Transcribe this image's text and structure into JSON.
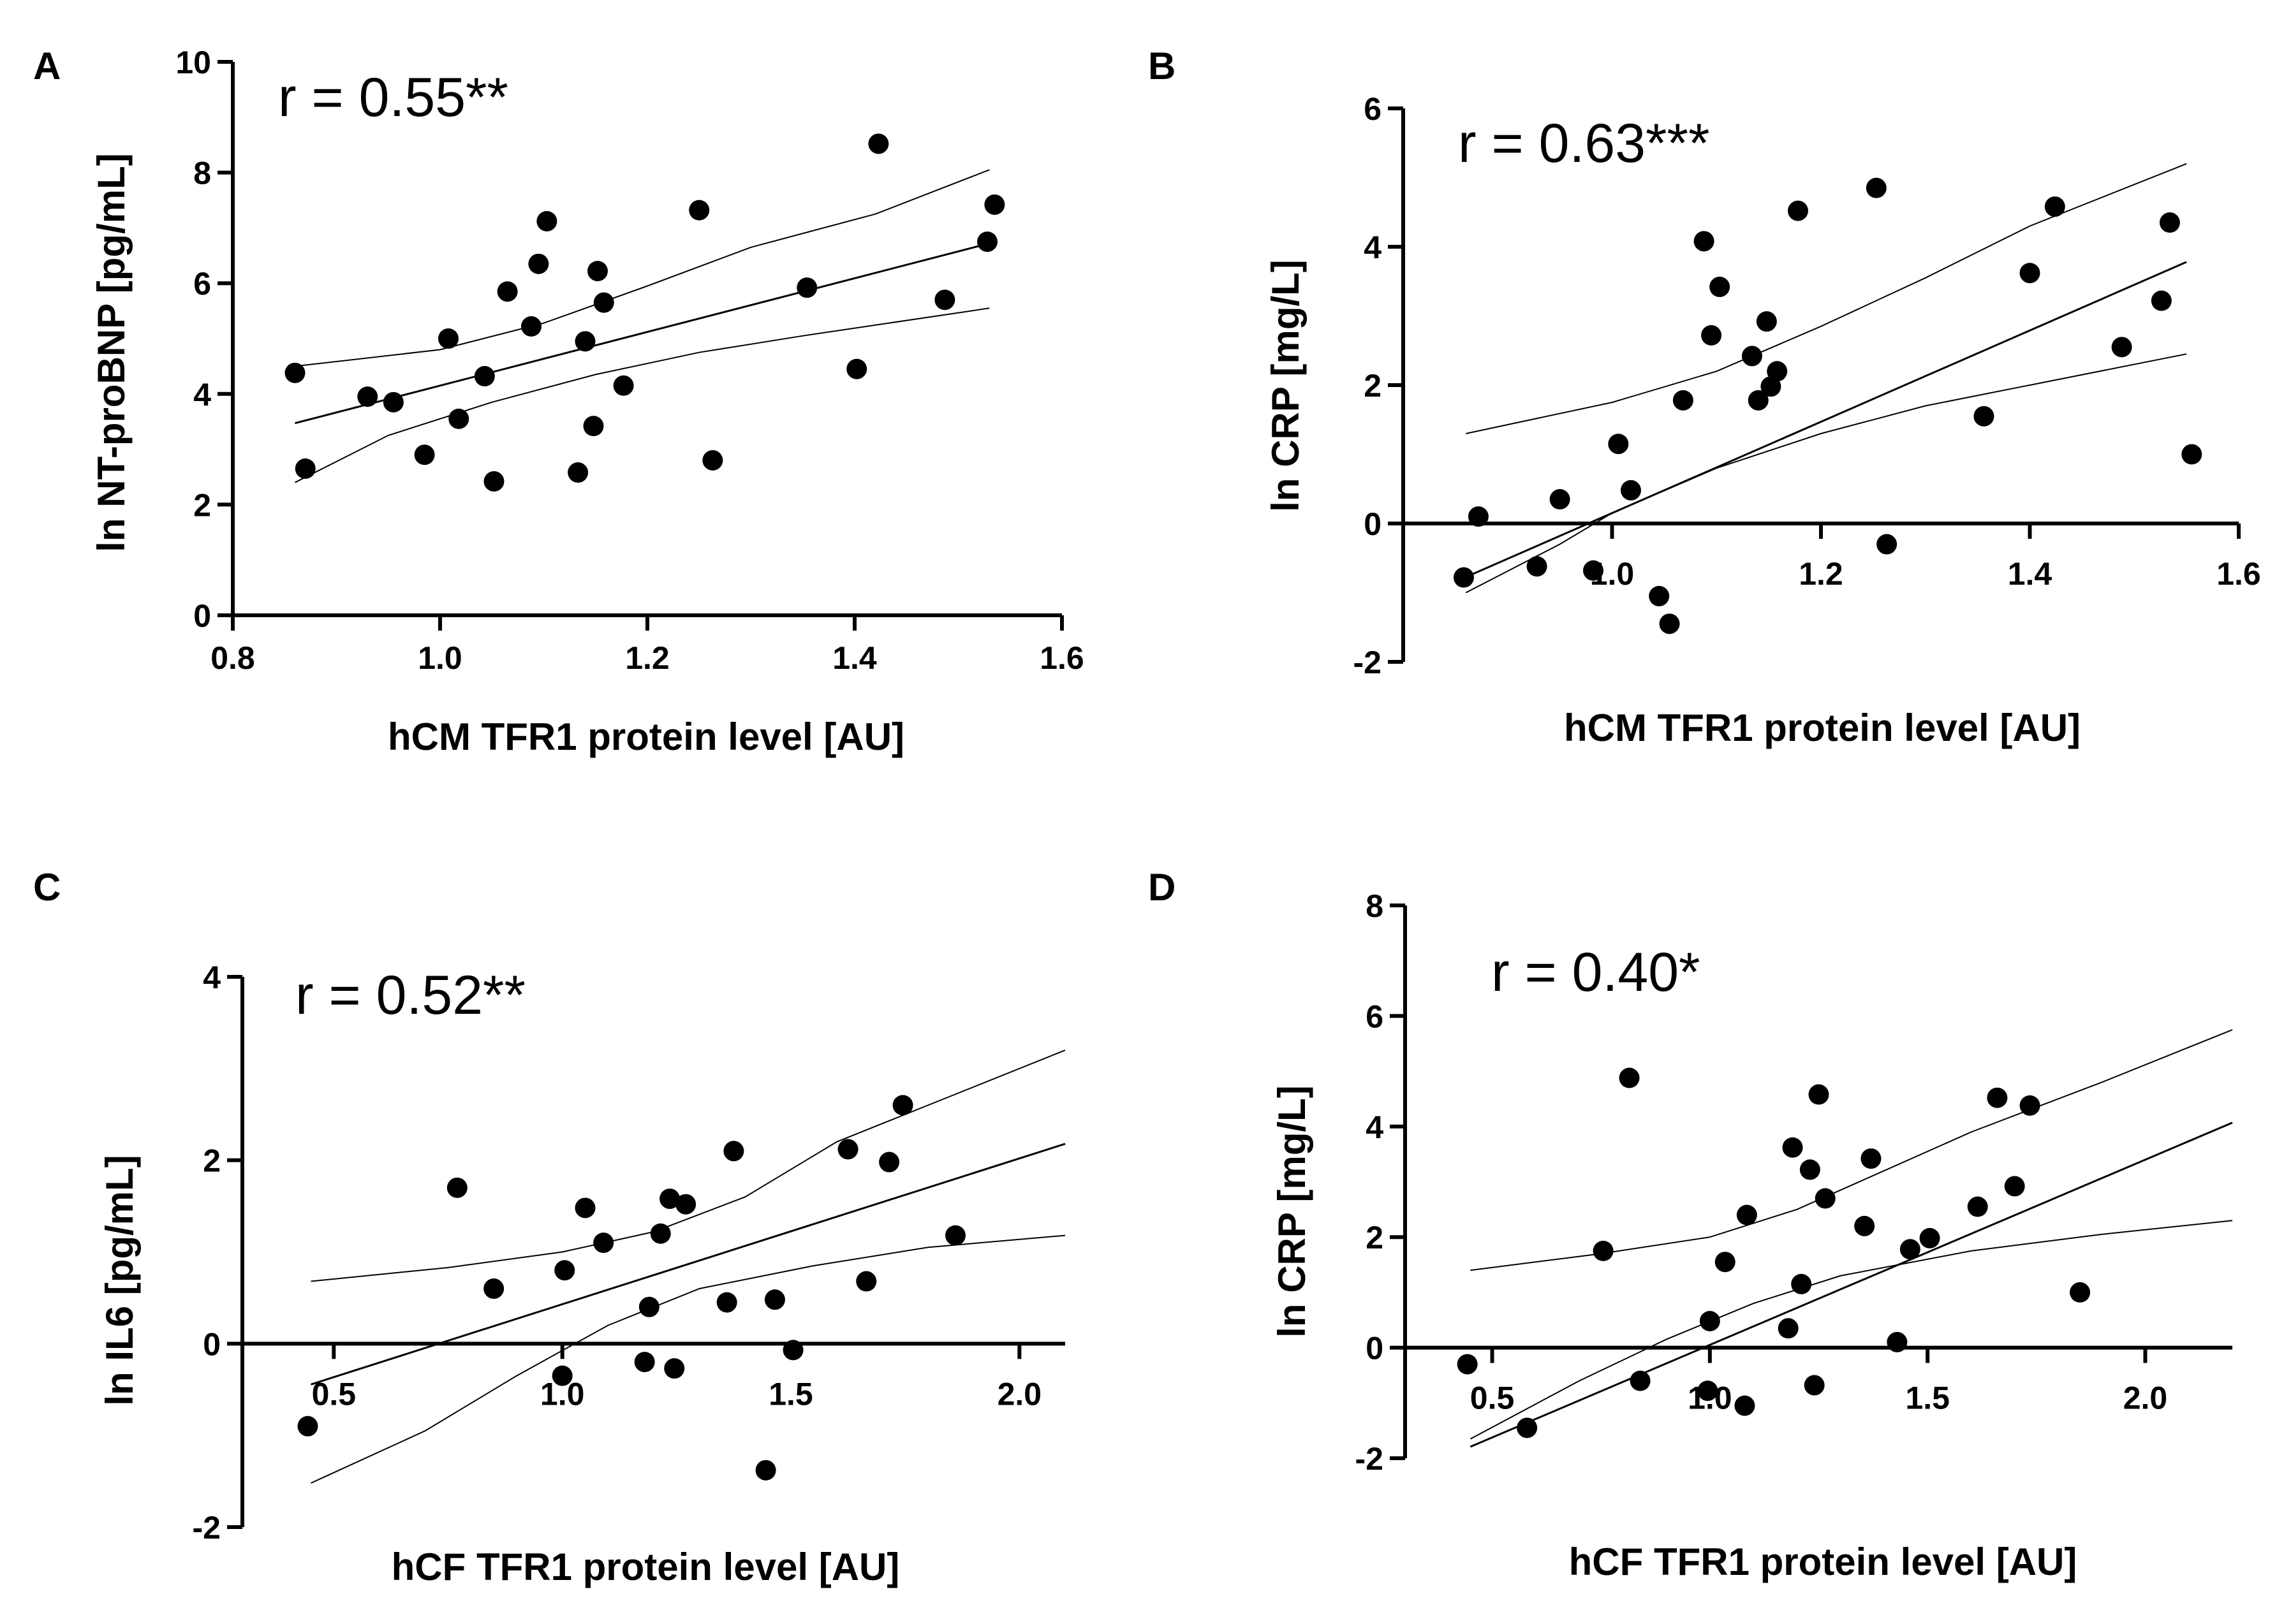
{
  "chart_data": [
    {
      "type": "scatter",
      "panel": "A",
      "r_label": "r = 0.55**",
      "xlabel": "hCM TFR1 protein level [AU]",
      "ylabel": "ln NT-proBNP [pg/mL]",
      "xlim": [
        0.8,
        1.6
      ],
      "ylim": [
        0,
        10
      ],
      "xticks": [
        0.8,
        1.0,
        1.2,
        1.4,
        1.6
      ],
      "xtick_labels": [
        "0.8",
        "1.0",
        "1.2",
        "1.4",
        "1.6"
      ],
      "yticks": [
        0,
        2,
        4,
        6,
        8,
        10
      ],
      "ytick_labels": [
        "0",
        "2",
        "4",
        "6",
        "8",
        "10"
      ],
      "x_axis_at": 0,
      "fit": {
        "slope": 4.85,
        "intercept": -0.7,
        "x_range": [
          0.86,
          1.53
        ]
      },
      "ci_upper": [
        [
          0.86,
          4.5
        ],
        [
          1.0,
          4.8
        ],
        [
          1.1,
          5.28
        ],
        [
          1.2,
          5.95
        ],
        [
          1.3,
          6.65
        ],
        [
          1.42,
          7.25
        ],
        [
          1.53,
          8.05
        ]
      ],
      "ci_lower": [
        [
          0.86,
          2.4
        ],
        [
          0.95,
          3.25
        ],
        [
          1.05,
          3.85
        ],
        [
          1.15,
          4.35
        ],
        [
          1.25,
          4.75
        ],
        [
          1.35,
          5.05
        ],
        [
          1.53,
          5.55
        ]
      ],
      "points": [
        [
          0.86,
          4.38
        ],
        [
          0.87,
          2.65
        ],
        [
          0.93,
          3.95
        ],
        [
          0.955,
          3.85
        ],
        [
          0.985,
          2.9
        ],
        [
          1.008,
          5.0
        ],
        [
          1.018,
          3.55
        ],
        [
          1.043,
          4.32
        ],
        [
          1.052,
          2.42
        ],
        [
          1.065,
          5.85
        ],
        [
          1.088,
          5.22
        ],
        [
          1.095,
          6.35
        ],
        [
          1.103,
          7.12
        ],
        [
          1.133,
          2.58
        ],
        [
          1.14,
          4.95
        ],
        [
          1.148,
          3.42
        ],
        [
          1.152,
          6.22
        ],
        [
          1.158,
          5.65
        ],
        [
          1.177,
          4.15
        ],
        [
          1.25,
          7.32
        ],
        [
          1.263,
          2.8
        ],
        [
          1.354,
          5.92
        ],
        [
          1.402,
          4.45
        ],
        [
          1.423,
          8.52
        ],
        [
          1.487,
          5.7
        ],
        [
          1.528,
          6.75
        ],
        [
          1.535,
          7.42
        ]
      ]
    },
    {
      "type": "scatter",
      "panel": "B",
      "r_label": "r = 0.63***",
      "xlabel": "hCM TFR1 protein level [AU]",
      "ylabel": "ln CRP [mg/L]",
      "xlim": [
        0.8,
        1.6
      ],
      "ylim": [
        -2,
        6
      ],
      "xticks": [
        1.0,
        1.2,
        1.4,
        1.6
      ],
      "xtick_labels": [
        "1.0",
        "1.2",
        "1.4",
        "1.6"
      ],
      "yticks": [
        -2,
        0,
        2,
        4,
        6
      ],
      "ytick_labels": [
        "-2",
        "0",
        "2",
        "4",
        "6"
      ],
      "x_axis_at": 0,
      "fit": {
        "slope": 6.6,
        "intercept": -6.45,
        "x_range": [
          0.86,
          1.55
        ]
      },
      "ci_upper": [
        [
          0.86,
          1.3
        ],
        [
          1.0,
          1.75
        ],
        [
          1.1,
          2.2
        ],
        [
          1.2,
          2.85
        ],
        [
          1.3,
          3.55
        ],
        [
          1.4,
          4.3
        ],
        [
          1.55,
          5.2
        ]
      ],
      "ci_lower": [
        [
          0.86,
          -1.0
        ],
        [
          0.95,
          -0.3
        ],
        [
          1.0,
          0.15
        ],
        [
          1.1,
          0.8
        ],
        [
          1.2,
          1.3
        ],
        [
          1.3,
          1.7
        ],
        [
          1.4,
          2.0
        ],
        [
          1.55,
          2.45
        ]
      ],
      "points": [
        [
          0.858,
          -0.78
        ],
        [
          0.872,
          0.1
        ],
        [
          0.928,
          -0.62
        ],
        [
          0.95,
          0.35
        ],
        [
          0.982,
          -0.68
        ],
        [
          1.006,
          1.15
        ],
        [
          1.018,
          0.48
        ],
        [
          1.045,
          -1.05
        ],
        [
          1.055,
          -1.45
        ],
        [
          1.068,
          1.78
        ],
        [
          1.088,
          4.08
        ],
        [
          1.095,
          2.72
        ],
        [
          1.103,
          3.42
        ],
        [
          1.134,
          2.42
        ],
        [
          1.14,
          1.78
        ],
        [
          1.148,
          2.92
        ],
        [
          1.152,
          1.98
        ],
        [
          1.158,
          2.2
        ],
        [
          1.178,
          4.52
        ],
        [
          1.253,
          4.85
        ],
        [
          1.263,
          -0.3
        ],
        [
          1.356,
          1.55
        ],
        [
          1.4,
          3.62
        ],
        [
          1.424,
          4.58
        ],
        [
          1.488,
          2.55
        ],
        [
          1.526,
          3.22
        ],
        [
          1.534,
          4.35
        ],
        [
          1.555,
          1.0
        ]
      ]
    },
    {
      "type": "scatter",
      "panel": "C",
      "r_label": "r = 0.52**",
      "xlabel": "hCF TFR1 protein level [AU]",
      "ylabel": "ln IL6 [pg/mL]",
      "xlim": [
        0.3,
        2.1
      ],
      "ylim": [
        -2,
        4
      ],
      "xticks": [
        0.5,
        1.0,
        1.5,
        2.0
      ],
      "xtick_labels": [
        "0.5",
        "1.0",
        "1.5",
        "2.0"
      ],
      "yticks": [
        -2,
        0,
        2,
        4
      ],
      "ytick_labels": [
        "-2",
        "0",
        "2",
        "4"
      ],
      "x_axis_at": 0,
      "fit": {
        "slope": 1.59,
        "intercept": -1.16,
        "x_range": [
          0.45,
          2.1
        ]
      },
      "ci_upper": [
        [
          0.45,
          0.68
        ],
        [
          0.75,
          0.83
        ],
        [
          1.0,
          1.0
        ],
        [
          1.2,
          1.22
        ],
        [
          1.4,
          1.6
        ],
        [
          1.6,
          2.2
        ],
        [
          1.85,
          2.7
        ],
        [
          2.1,
          3.2
        ]
      ],
      "ci_lower": [
        [
          0.45,
          -1.52
        ],
        [
          0.7,
          -0.95
        ],
        [
          0.9,
          -0.35
        ],
        [
          1.1,
          0.2
        ],
        [
          1.3,
          0.6
        ],
        [
          1.55,
          0.85
        ],
        [
          1.8,
          1.05
        ],
        [
          2.1,
          1.18
        ]
      ],
      "points": [
        [
          0.443,
          -0.9
        ],
        [
          0.77,
          1.7
        ],
        [
          0.85,
          0.6
        ],
        [
          1.0,
          -0.35
        ],
        [
          1.005,
          0.8
        ],
        [
          1.05,
          1.48
        ],
        [
          1.09,
          1.1
        ],
        [
          1.18,
          -0.2
        ],
        [
          1.19,
          0.4
        ],
        [
          1.215,
          1.2
        ],
        [
          1.235,
          1.58
        ],
        [
          1.245,
          -0.27
        ],
        [
          1.27,
          1.52
        ],
        [
          1.36,
          0.45
        ],
        [
          1.375,
          2.1
        ],
        [
          1.445,
          -1.38
        ],
        [
          1.465,
          0.48
        ],
        [
          1.505,
          -0.07
        ],
        [
          1.625,
          2.12
        ],
        [
          1.665,
          0.68
        ],
        [
          1.715,
          1.98
        ],
        [
          1.745,
          2.6
        ],
        [
          1.86,
          1.18
        ]
      ]
    },
    {
      "type": "scatter",
      "panel": "D",
      "r_label": "r = 0.40*",
      "xlabel": "hCF TFR1 protein level [AU]",
      "ylabel": "ln CRP [mg/L]",
      "xlim": [
        0.3,
        2.2
      ],
      "ylim": [
        -2,
        8
      ],
      "xticks": [
        0.5,
        1.0,
        1.5,
        2.0
      ],
      "xtick_labels": [
        "0.5",
        "1.0",
        "1.5",
        "2.0"
      ],
      "yticks": [
        -2,
        0,
        2,
        4,
        6,
        8
      ],
      "ytick_labels": [
        "-2",
        "0",
        "2",
        "4",
        "6",
        "8"
      ],
      "x_axis_at": 0,
      "fit": {
        "slope": 3.35,
        "intercept": -3.3,
        "x_range": [
          0.45,
          2.2
        ]
      },
      "ci_upper": [
        [
          0.45,
          1.4
        ],
        [
          0.75,
          1.7
        ],
        [
          1.0,
          2.0
        ],
        [
          1.2,
          2.5
        ],
        [
          1.4,
          3.2
        ],
        [
          1.6,
          3.9
        ],
        [
          1.9,
          4.8
        ],
        [
          2.2,
          5.75
        ]
      ],
      "ci_lower": [
        [
          0.45,
          -1.65
        ],
        [
          0.7,
          -0.6
        ],
        [
          0.9,
          0.15
        ],
        [
          1.1,
          0.8
        ],
        [
          1.3,
          1.3
        ],
        [
          1.6,
          1.75
        ],
        [
          1.9,
          2.05
        ],
        [
          2.2,
          2.3
        ]
      ],
      "points": [
        [
          0.443,
          -0.3
        ],
        [
          0.58,
          -1.45
        ],
        [
          0.755,
          1.75
        ],
        [
          0.815,
          4.88
        ],
        [
          0.84,
          -0.6
        ],
        [
          0.995,
          -0.78
        ],
        [
          1.0,
          0.48
        ],
        [
          1.035,
          1.55
        ],
        [
          1.08,
          -1.05
        ],
        [
          1.085,
          2.4
        ],
        [
          1.18,
          0.35
        ],
        [
          1.19,
          3.62
        ],
        [
          1.21,
          1.15
        ],
        [
          1.23,
          3.22
        ],
        [
          1.24,
          -0.68
        ],
        [
          1.25,
          4.58
        ],
        [
          1.265,
          2.7
        ],
        [
          1.355,
          2.2
        ],
        [
          1.37,
          3.42
        ],
        [
          1.43,
          0.1
        ],
        [
          1.46,
          1.78
        ],
        [
          1.505,
          1.98
        ],
        [
          1.615,
          2.55
        ],
        [
          1.66,
          4.52
        ],
        [
          1.7,
          2.92
        ],
        [
          1.735,
          4.38
        ],
        [
          1.85,
          1.0
        ]
      ]
    }
  ]
}
